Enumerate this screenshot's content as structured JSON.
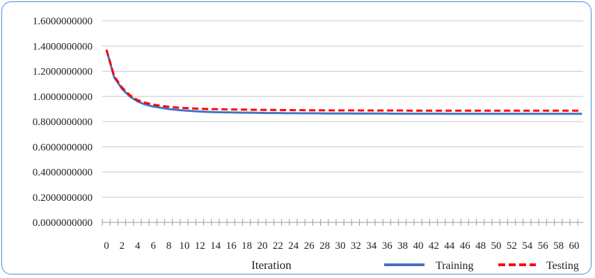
{
  "chart_data": {
    "type": "line",
    "title": "",
    "xlabel": "Iteration",
    "ylabel": "",
    "ylim": [
      0,
      1.6
    ],
    "y_ticks": [
      "0.0000000000",
      "0.2000000000",
      "0.4000000000",
      "0.6000000000",
      "0.8000000000",
      "1.0000000000",
      "1.2000000000",
      "1.4000000000",
      "1.6000000000"
    ],
    "y_tick_values": [
      0,
      0.2,
      0.4,
      0.6,
      0.8,
      1.0,
      1.2,
      1.4,
      1.6
    ],
    "x": [
      0,
      1,
      2,
      3,
      4,
      5,
      6,
      7,
      8,
      9,
      10,
      11,
      12,
      13,
      14,
      15,
      16,
      17,
      18,
      19,
      20,
      21,
      22,
      23,
      24,
      25,
      26,
      27,
      28,
      29,
      30,
      31,
      32,
      33,
      34,
      35,
      36,
      37,
      38,
      39,
      40,
      41,
      42,
      43,
      44,
      45,
      46,
      47,
      48,
      49,
      50,
      51,
      52,
      53,
      54,
      55,
      56,
      57,
      58,
      59,
      60,
      61
    ],
    "x_tick_labels": [
      "0",
      "2",
      "4",
      "6",
      "8",
      "10",
      "12",
      "14",
      "16",
      "18",
      "20",
      "22",
      "24",
      "26",
      "28",
      "30",
      "32",
      "34",
      "36",
      "38",
      "40",
      "42",
      "44",
      "46",
      "48",
      "50",
      "52",
      "54",
      "56",
      "58",
      "60"
    ],
    "grid": "horizontal",
    "legend_position": "bottom-right",
    "series": [
      {
        "name": "Training",
        "color": "#4472c4",
        "style": "solid",
        "values": [
          1.37,
          1.15,
          1.06,
          1.0,
          0.96,
          0.935,
          0.92,
          0.91,
          0.9,
          0.893,
          0.888,
          0.884,
          0.88,
          0.877,
          0.875,
          0.874,
          0.873,
          0.872,
          0.871,
          0.87,
          0.869,
          0.868,
          0.868,
          0.867,
          0.867,
          0.866,
          0.866,
          0.866,
          0.865,
          0.865,
          0.865,
          0.865,
          0.864,
          0.864,
          0.864,
          0.864,
          0.864,
          0.863,
          0.863,
          0.863,
          0.863,
          0.863,
          0.863,
          0.863,
          0.862,
          0.862,
          0.862,
          0.862,
          0.862,
          0.862,
          0.862,
          0.862,
          0.862,
          0.862,
          0.862,
          0.862,
          0.862,
          0.862,
          0.862,
          0.862,
          0.862,
          0.862
        ]
      },
      {
        "name": "Testing",
        "color": "#ff0000",
        "style": "dashed",
        "values": [
          1.37,
          1.16,
          1.07,
          1.01,
          0.97,
          0.95,
          0.935,
          0.925,
          0.918,
          0.912,
          0.908,
          0.905,
          0.902,
          0.9,
          0.899,
          0.898,
          0.897,
          0.896,
          0.895,
          0.894,
          0.893,
          0.893,
          0.892,
          0.892,
          0.891,
          0.891,
          0.89,
          0.89,
          0.89,
          0.889,
          0.889,
          0.889,
          0.889,
          0.888,
          0.888,
          0.888,
          0.888,
          0.888,
          0.888,
          0.887,
          0.887,
          0.887,
          0.887,
          0.887,
          0.887,
          0.887,
          0.887,
          0.887,
          0.887,
          0.887,
          0.887,
          0.887,
          0.887,
          0.887,
          0.887,
          0.887,
          0.887,
          0.887,
          0.887,
          0.887,
          0.887,
          0.887
        ]
      }
    ]
  }
}
